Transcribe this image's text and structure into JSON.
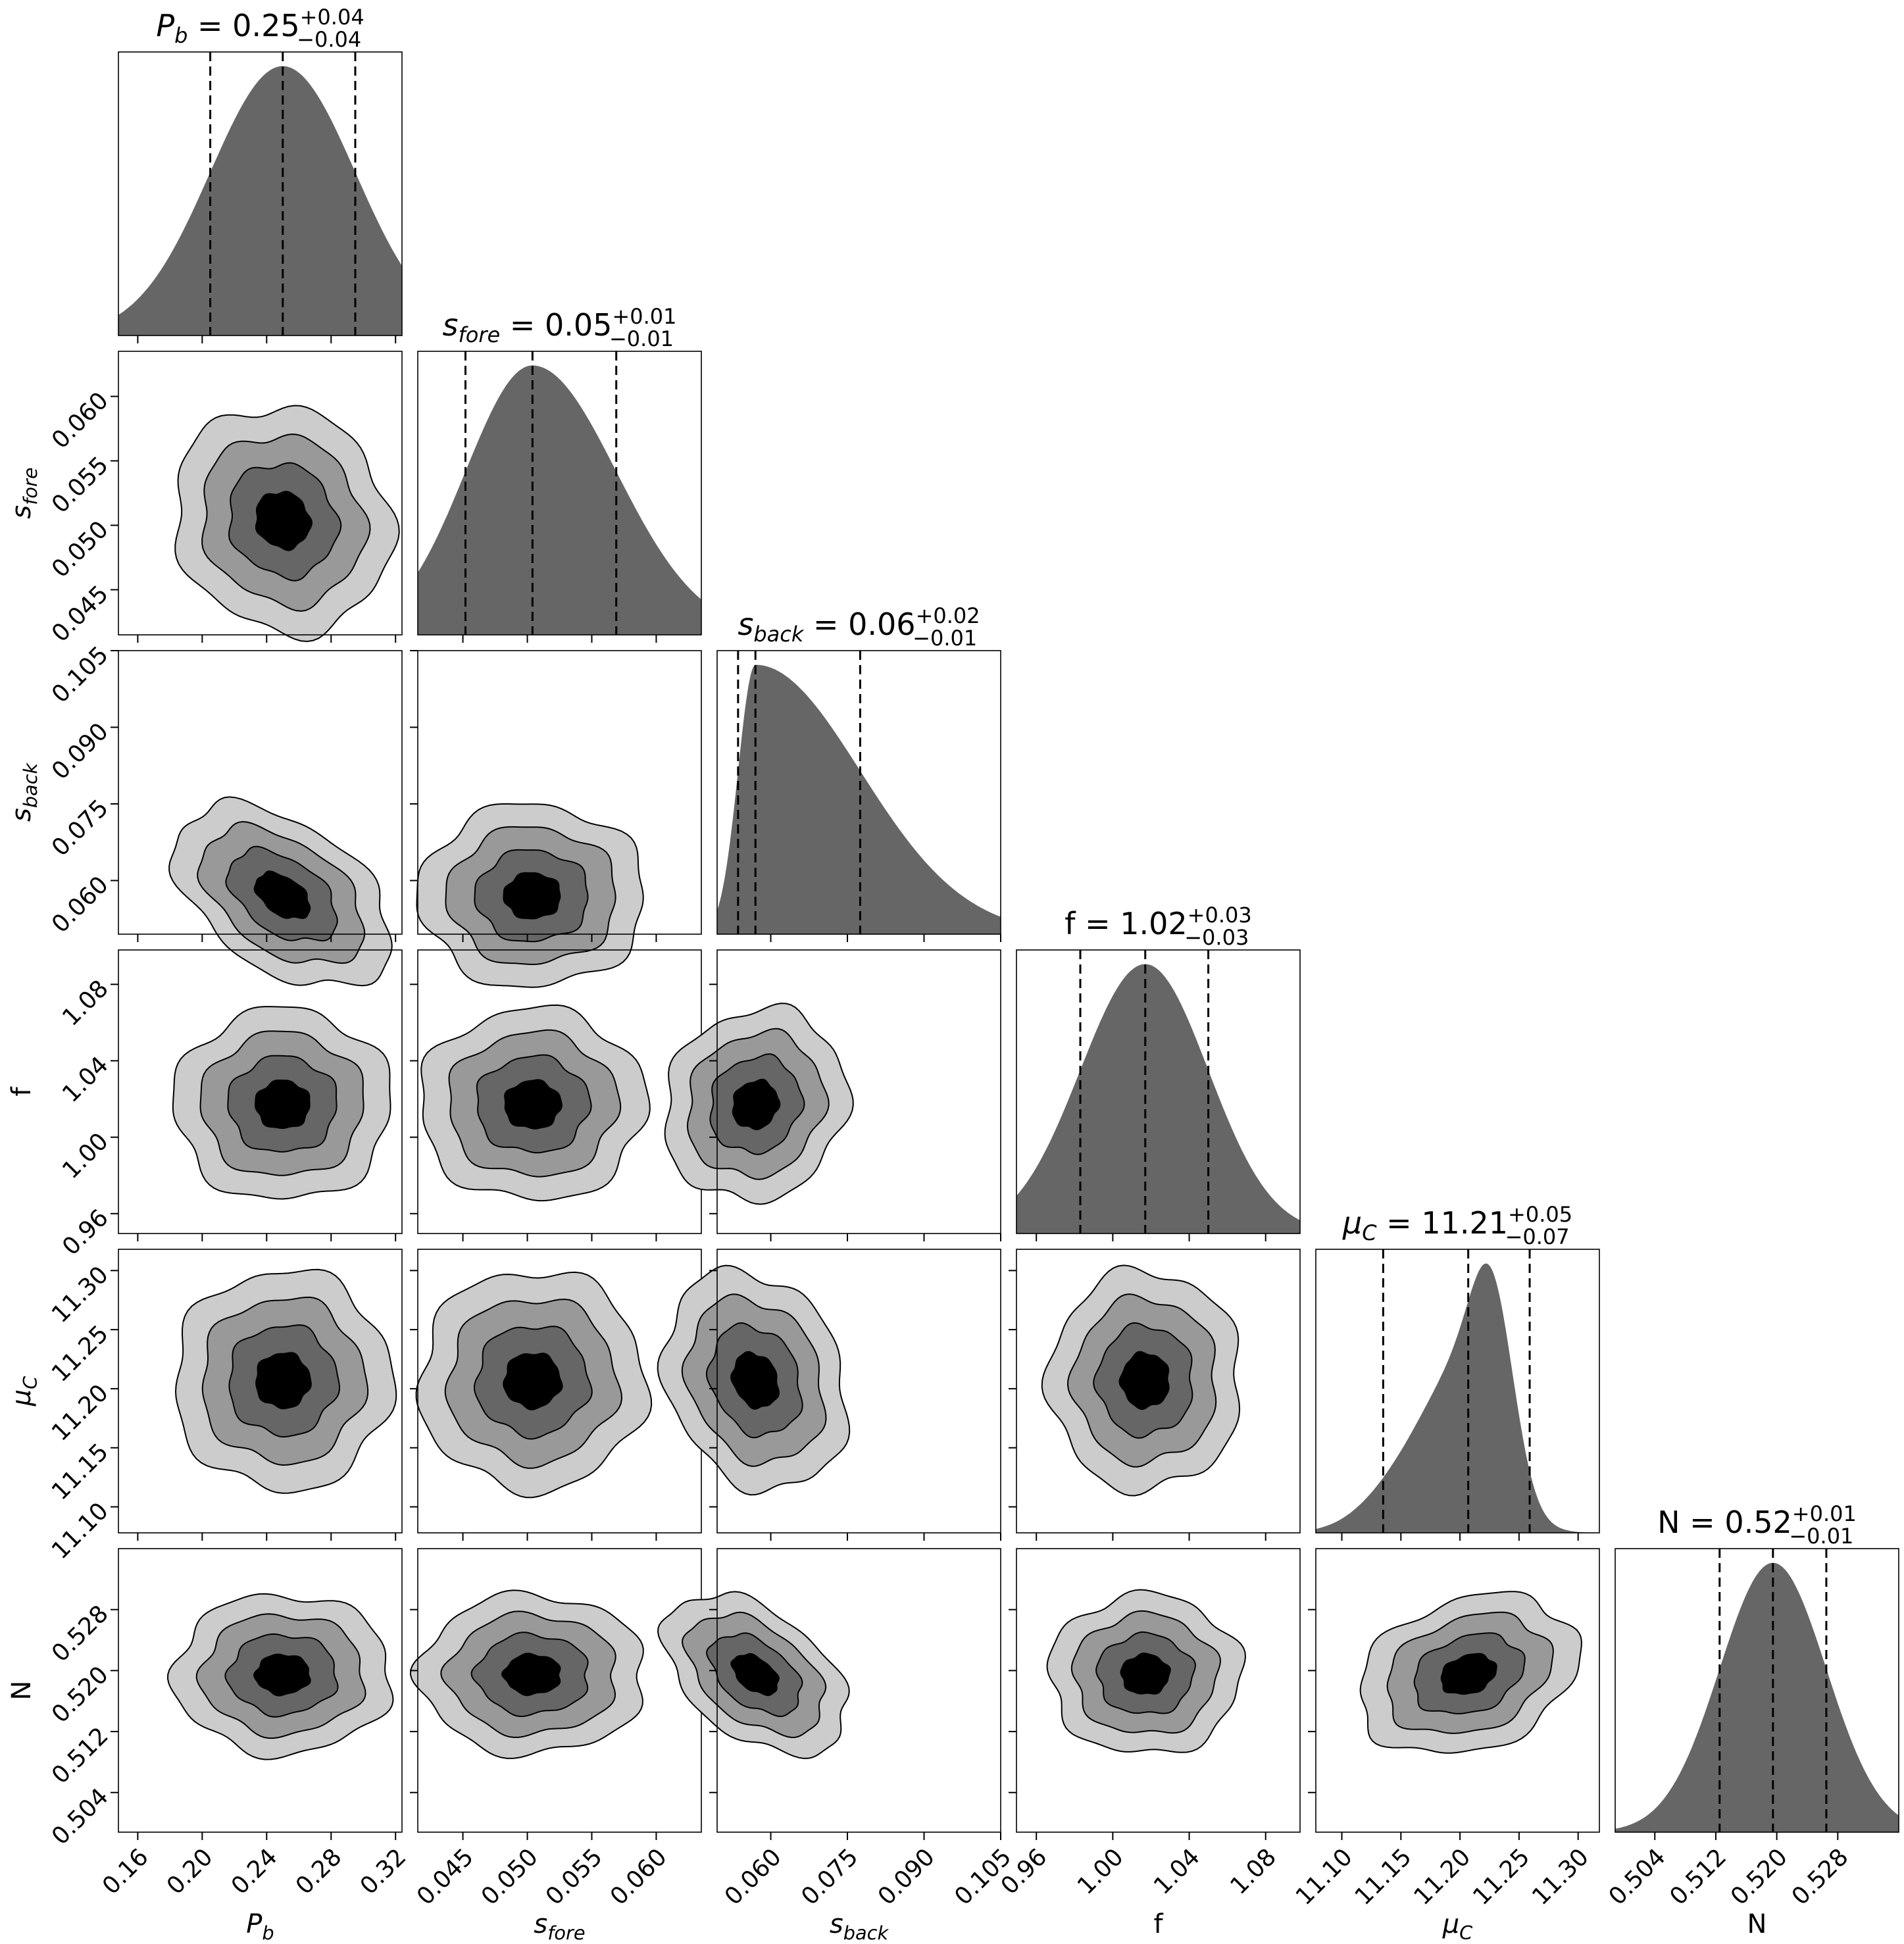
{
  "chart_data": {
    "type": "corner",
    "title": "",
    "parameters": [
      {
        "key": "Pb",
        "label": {
          "sym": "P",
          "sub": "b",
          "italic": true
        },
        "title": {
          "value": "0.25",
          "plus": "+0.04",
          "minus": "−0.04"
        },
        "quantiles": [
          0.205,
          0.25,
          0.295
        ],
        "range": [
          0.148,
          0.324
        ],
        "ticks": [
          0.16,
          0.2,
          0.24,
          0.28,
          0.32
        ],
        "tick_labels": [
          "0.16",
          "0.20",
          "0.24",
          "0.28",
          "0.32"
        ]
      },
      {
        "key": "sfore",
        "label": {
          "sym": "s",
          "sub": "fore",
          "italic": true
        },
        "title": {
          "value": "0.05",
          "plus": "+0.01",
          "minus": "−0.01"
        },
        "quantiles": [
          0.0452,
          0.0504,
          0.0569
        ],
        "range": [
          0.0415,
          0.0635
        ],
        "ticks": [
          0.045,
          0.05,
          0.055,
          0.06
        ],
        "tick_labels": [
          "0.045",
          "0.050",
          "0.055",
          "0.060"
        ]
      },
      {
        "key": "sback",
        "label": {
          "sym": "s",
          "sub": "back",
          "italic": true
        },
        "title": {
          "value": "0.06",
          "plus": "+0.02",
          "minus": "−0.01"
        },
        "quantiles": [
          0.0536,
          0.057,
          0.0775
        ],
        "range": [
          0.0495,
          0.105
        ],
        "ticks": [
          0.06,
          0.075,
          0.09,
          0.105
        ],
        "tick_labels": [
          "0.060",
          "0.075",
          "0.090",
          "0.105"
        ]
      },
      {
        "key": "f",
        "label": {
          "sym": "f",
          "sub": "",
          "italic": false
        },
        "title": {
          "value": "1.02",
          "plus": "+0.03",
          "minus": "−0.03"
        },
        "quantiles": [
          0.983,
          1.017,
          1.05
        ],
        "range": [
          0.9496,
          1.098
        ],
        "ticks": [
          0.96,
          1.0,
          1.04,
          1.08
        ],
        "tick_labels": [
          "0.96",
          "1.00",
          "1.04",
          "1.08"
        ]
      },
      {
        "key": "muC",
        "label": {
          "sym": "μ",
          "sub": "C",
          "italic": true
        },
        "title": {
          "value": "11.21",
          "plus": "+0.05",
          "minus": "−0.07"
        },
        "quantiles": [
          11.135,
          11.207,
          11.259
        ],
        "range": [
          11.078,
          11.318
        ],
        "ticks": [
          11.1,
          11.15,
          11.2,
          11.25,
          11.3
        ],
        "tick_labels": [
          "11.10",
          "11.15",
          "11.20",
          "11.25",
          "11.30"
        ]
      },
      {
        "key": "N",
        "label": {
          "sym": "N",
          "sub": "",
          "italic": false
        },
        "title": {
          "value": "0.52",
          "plus": "+0.01",
          "minus": "−0.01"
        },
        "quantiles": [
          0.5125,
          0.5195,
          0.5265
        ],
        "range": [
          0.4988,
          0.536
        ],
        "ticks": [
          0.504,
          0.512,
          0.52,
          0.528
        ],
        "tick_labels": [
          "0.504",
          "0.512",
          "0.520",
          "0.528"
        ]
      }
    ],
    "correlations": {
      "0-2": -0.45,
      "2-5": -0.45,
      "4-5": 0.25,
      "0-1": -0.1,
      "2-3": 0.1,
      "2-4": -0.2
    },
    "contour_levels_sigma": [
      0.5,
      1.0,
      1.5,
      2.0
    ],
    "colors": {
      "hist": "#666666",
      "contours": [
        "#cccccc",
        "#999999",
        "#666666",
        "#000000"
      ]
    }
  }
}
